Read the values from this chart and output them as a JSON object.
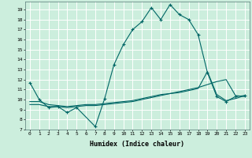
{
  "xlabel": "Humidex (Indice chaleur)",
  "bg_color": "#cceedd",
  "line_color": "#006666",
  "grid_color": "#ffffff",
  "xlim": [
    -0.5,
    23.5
  ],
  "ylim": [
    7,
    19.8
  ],
  "xticks": [
    0,
    1,
    2,
    3,
    4,
    5,
    6,
    7,
    8,
    9,
    10,
    11,
    12,
    13,
    14,
    15,
    16,
    17,
    18,
    19,
    20,
    21,
    22,
    23
  ],
  "yticks": [
    7,
    8,
    9,
    10,
    11,
    12,
    13,
    14,
    15,
    16,
    17,
    18,
    19
  ],
  "series": [
    {
      "x": [
        0,
        1,
        2,
        3,
        4,
        5,
        7,
        8,
        9,
        10,
        11,
        12,
        13,
        14,
        15,
        16,
        17,
        18,
        19,
        20,
        21,
        22,
        23
      ],
      "y": [
        11.7,
        10.0,
        9.2,
        9.3,
        8.7,
        9.2,
        7.3,
        10.1,
        13.5,
        15.5,
        17.0,
        17.8,
        19.2,
        18.0,
        19.5,
        18.5,
        18.0,
        16.5,
        12.7,
        10.3,
        9.8,
        10.3,
        10.4
      ],
      "marker": true
    },
    {
      "x": [
        0,
        1,
        2,
        3,
        4,
        5,
        6,
        7,
        8,
        9,
        10,
        11,
        12,
        13,
        14,
        15,
        16,
        17,
        18,
        19,
        20,
        21,
        22,
        23
      ],
      "y": [
        9.5,
        9.5,
        9.3,
        9.3,
        9.2,
        9.3,
        9.4,
        9.4,
        9.5,
        9.6,
        9.7,
        9.8,
        10.0,
        10.2,
        10.4,
        10.6,
        10.8,
        11.0,
        11.2,
        11.5,
        11.8,
        12.0,
        10.4,
        10.3
      ],
      "marker": false
    },
    {
      "x": [
        0,
        1,
        2,
        3,
        4,
        5,
        6,
        7,
        8,
        9,
        10,
        11,
        12,
        13,
        14,
        15,
        16,
        17,
        18,
        19,
        20,
        21,
        22,
        23
      ],
      "y": [
        9.8,
        9.8,
        9.5,
        9.4,
        9.3,
        9.4,
        9.5,
        9.5,
        9.6,
        9.7,
        9.8,
        9.9,
        10.1,
        10.3,
        10.5,
        10.6,
        10.7,
        10.9,
        11.1,
        12.8,
        10.5,
        9.9,
        10.1,
        10.4
      ],
      "marker": false
    }
  ]
}
